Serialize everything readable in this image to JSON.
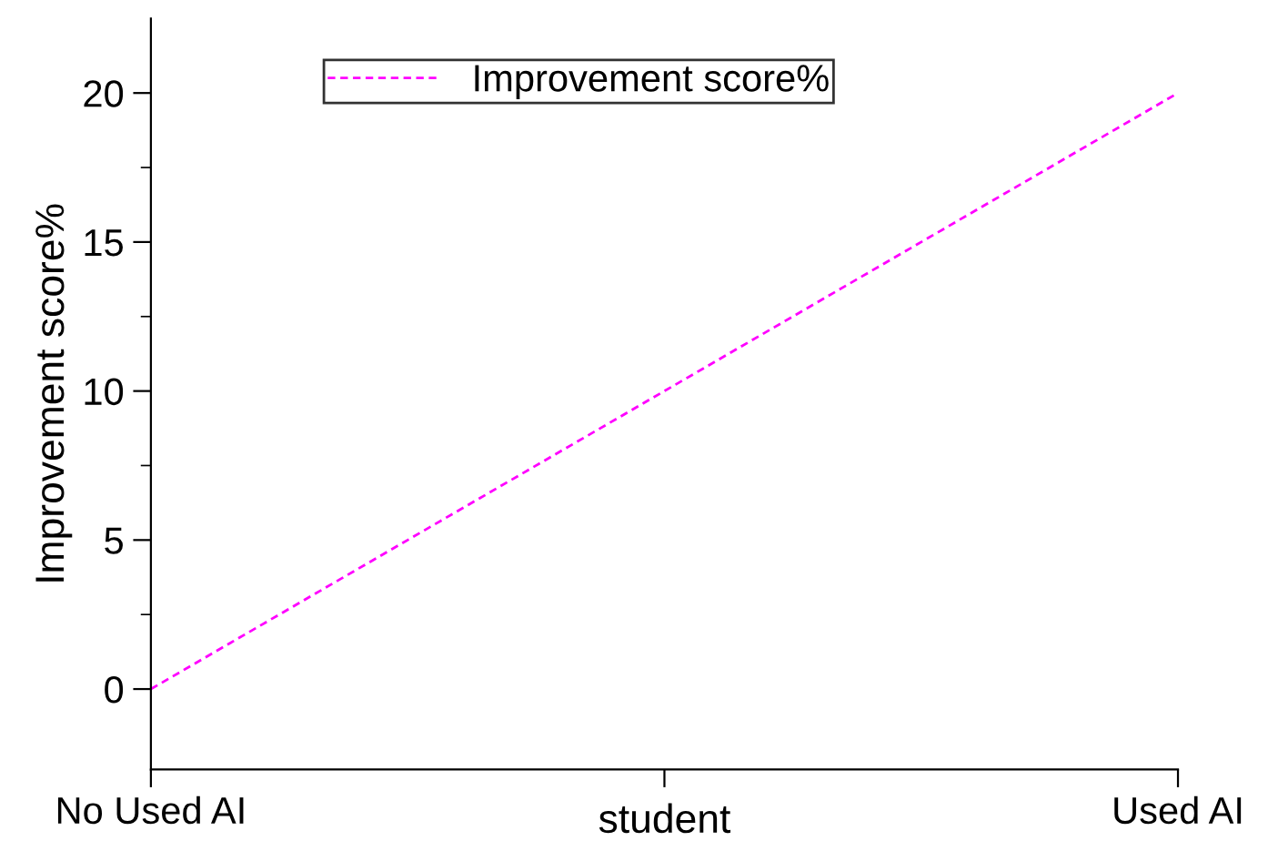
{
  "chart_data": {
    "type": "line",
    "xlabel": "student",
    "ylabel": "Improvement score%",
    "categories": [
      "No Used AI",
      null,
      "Used AI"
    ],
    "series": [
      {
        "name": "Improvement score%",
        "color": "#ff00ff",
        "values": [
          0,
          10,
          20
        ]
      }
    ],
    "ylim": [
      -2.7,
      22.5
    ],
    "yticks": [
      0,
      5,
      10,
      15,
      20
    ],
    "grid": false,
    "legend": "top left",
    "line_style": "dashed",
    "marker": "none"
  }
}
